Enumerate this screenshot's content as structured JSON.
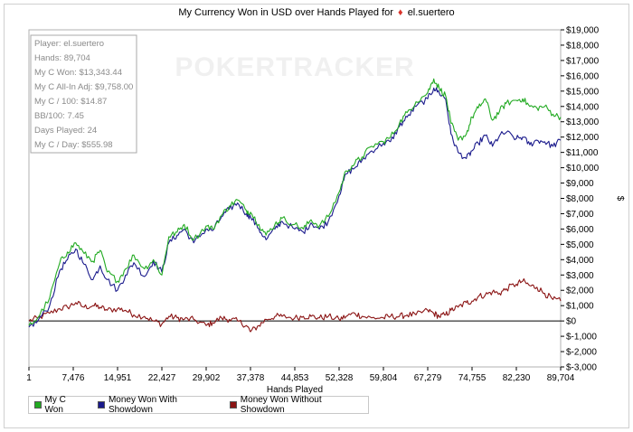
{
  "chart_data": {
    "type": "line",
    "title_prefix": "My Currency Won in USD over Hands Played for",
    "title_player": "el.suertero",
    "xlabel": "Hands Played",
    "ylabel": "$",
    "xlim": [
      1,
      89704
    ],
    "ylim": [
      -3000,
      19000
    ],
    "x_ticks": [
      "1",
      "7,476",
      "14,951",
      "22,427",
      "29,902",
      "37,378",
      "44,853",
      "52,328",
      "59,804",
      "67,279",
      "74,755",
      "82,230",
      "89,704"
    ],
    "y_ticks": [
      "$19,000",
      "$18,000",
      "$17,000",
      "$16,000",
      "$15,000",
      "$14,000",
      "$13,000",
      "$12,000",
      "$11,000",
      "$10,000",
      "$9,000",
      "$8,000",
      "$7,000",
      "$6,000",
      "$5,000",
      "$4,000",
      "$3,000",
      "$2,000",
      "$1,000",
      "$0",
      "$-1,000",
      "$-2,000",
      "$-3,000"
    ],
    "watermark": "POKERTRACKER",
    "legend_placement": "bottom-left",
    "series": [
      {
        "name": "My C Won",
        "color": "#22aa22",
        "x": [
          1,
          1500,
          3500,
          5200,
          6500,
          7900,
          9300,
          10800,
          12000,
          13200,
          14951,
          16300,
          17700,
          19500,
          21000,
          22427,
          23600,
          25000,
          26200,
          27800,
          29902,
          31000,
          32500,
          33800,
          35200,
          36700,
          37378,
          38800,
          40000,
          41500,
          42700,
          44853,
          46300,
          47600,
          49000,
          50500,
          52328,
          53500,
          55000,
          56200,
          57800,
          59804,
          61000,
          62500,
          63800,
          65300,
          67279,
          68300,
          69200,
          70300,
          71200,
          72400,
          73800,
          74755,
          75800,
          77000,
          78200,
          79400,
          80500,
          82230,
          83300,
          84500,
          85700,
          87000,
          88400,
          89704
        ],
        "values": [
          -300,
          200,
          1500,
          3800,
          4500,
          5100,
          4400,
          3900,
          4600,
          3200,
          2600,
          3400,
          4300,
          3400,
          4000,
          3000,
          5500,
          5800,
          6300,
          5300,
          6200,
          6000,
          6900,
          7500,
          7900,
          7200,
          7100,
          6300,
          5600,
          6300,
          6700,
          6300,
          6000,
          6600,
          6200,
          6800,
          8400,
          9800,
          10300,
          10700,
          11400,
          11700,
          12000,
          12900,
          13600,
          14300,
          14900,
          15800,
          15200,
          14700,
          12900,
          11800,
          12200,
          13300,
          13900,
          14500,
          13100,
          13700,
          14200,
          14400,
          14500,
          14000,
          13900,
          14000,
          13500,
          13300
        ]
      },
      {
        "name": "Money Won With Showdown",
        "color": "#1a1a8c",
        "x": [
          1,
          1500,
          3500,
          5200,
          6500,
          7900,
          9300,
          10800,
          12000,
          13200,
          14951,
          16300,
          17700,
          19500,
          21000,
          22427,
          23600,
          25000,
          26200,
          27800,
          29902,
          31000,
          32500,
          33800,
          35200,
          36700,
          37378,
          38800,
          40000,
          41500,
          42700,
          44853,
          46300,
          47600,
          49000,
          50500,
          52328,
          53500,
          55000,
          56200,
          57800,
          59804,
          61000,
          62500,
          63800,
          65300,
          67279,
          68300,
          69200,
          70300,
          71200,
          72400,
          73800,
          74755,
          75800,
          77000,
          78200,
          79400,
          80500,
          82230,
          83300,
          84500,
          85700,
          87000,
          88400,
          89704
        ],
        "values": [
          -400,
          0,
          1000,
          3300,
          4000,
          4700,
          3700,
          2700,
          3600,
          2700,
          2000,
          3000,
          3800,
          2900,
          3900,
          3200,
          5100,
          5600,
          6000,
          5100,
          6000,
          5900,
          6800,
          7300,
          7700,
          7000,
          6800,
          6000,
          5300,
          6000,
          6500,
          6000,
          5800,
          6400,
          6000,
          6500,
          8200,
          9600,
          10000,
          10500,
          11100,
          11600,
          11700,
          12700,
          13300,
          14000,
          14500,
          15200,
          14900,
          14500,
          12200,
          11000,
          10600,
          11100,
          11600,
          12100,
          11400,
          12100,
          12300,
          11900,
          12000,
          11500,
          11800,
          11700,
          11400,
          11800
        ]
      },
      {
        "name": "Money Won Without Showdown",
        "color": "#8b1414",
        "x": [
          1,
          1500,
          3500,
          5200,
          6500,
          7900,
          9300,
          10800,
          12000,
          13200,
          14951,
          16300,
          17700,
          19500,
          21000,
          22427,
          23600,
          25000,
          26200,
          27800,
          29902,
          31000,
          32500,
          33800,
          35200,
          36700,
          37378,
          38800,
          40000,
          41500,
          42700,
          44853,
          46300,
          47600,
          49000,
          50500,
          52328,
          53500,
          55000,
          56200,
          57800,
          59804,
          61000,
          62500,
          63800,
          65300,
          67279,
          68300,
          69200,
          70300,
          71200,
          72400,
          73800,
          74755,
          75800,
          77000,
          78200,
          79400,
          80500,
          82230,
          83300,
          84500,
          85700,
          87000,
          88400,
          89704
        ],
        "values": [
          0,
          200,
          500,
          800,
          900,
          1200,
          900,
          1000,
          900,
          700,
          800,
          700,
          400,
          300,
          0,
          -200,
          300,
          200,
          100,
          100,
          -300,
          -100,
          200,
          100,
          0,
          -300,
          -700,
          -300,
          100,
          300,
          300,
          200,
          300,
          300,
          200,
          300,
          100,
          300,
          500,
          300,
          200,
          200,
          300,
          300,
          400,
          400,
          700,
          500,
          300,
          400,
          700,
          900,
          1200,
          1300,
          1600,
          1700,
          1900,
          1800,
          2100,
          2400,
          2600,
          2300,
          2200,
          1800,
          1400,
          1300
        ]
      }
    ]
  },
  "stats": {
    "player": "Player: el.suertero",
    "hands": "Hands: 89,704",
    "c_won": "My C Won: $13,343.44",
    "allin_adj": "My C All-In Adj: $9,758.00",
    "c_per_100": "My C / 100: $14.87",
    "bb_per_100": "BB/100: 7.45",
    "days_played": "Days Played: 24",
    "c_per_day": "My C / Day: $555.98"
  }
}
